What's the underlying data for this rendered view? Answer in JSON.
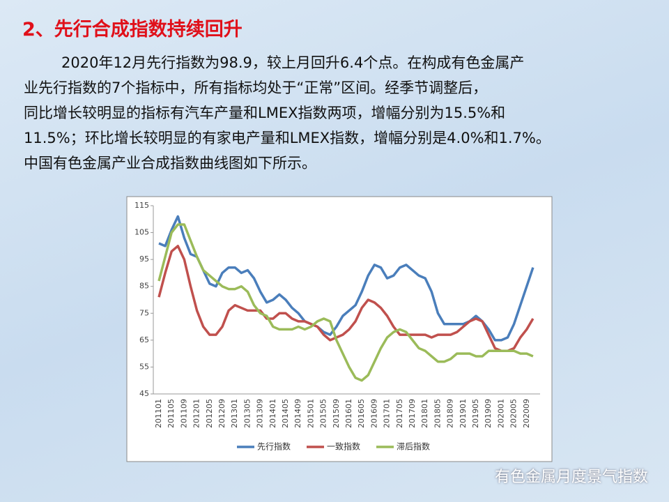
{
  "heading": "2、先行合成指数持续回升",
  "paragraph": [
    "2020年12月先行指数为98.9，较上月回升6.4个点。在构成有色金属产",
    "业先行指数的7个指标中，所有指标均处于“正常”区间。经季节调整后，",
    "同比增长较明显的指标有汽车产量和LMEX指数两项，增幅分别为15.5%和",
    "11.5%；环比增长较明显的有家电产量和LMEX指数，增幅分别是4.0%和1.7%。",
    "中国有色金属产业合成指数曲线图如下所示。"
  ],
  "footer": "有色金属月度景气指数",
  "chart_data": {
    "type": "line",
    "categories": [
      "201101",
      null,
      "201105",
      null,
      "201109",
      null,
      "201201",
      null,
      "201205",
      null,
      "201209",
      null,
      "201301",
      null,
      "201305",
      null,
      "201309",
      null,
      "201401",
      null,
      "201405",
      null,
      "201409",
      null,
      "201501",
      null,
      "201505",
      null,
      "201509",
      null,
      "201601",
      null,
      "201605",
      null,
      "201609",
      null,
      "201701",
      null,
      "201705",
      null,
      "201709",
      null,
      "201801",
      null,
      "201805",
      null,
      "201809",
      null,
      "201901",
      null,
      "201905",
      null,
      "201909",
      null,
      "202001",
      null,
      "202005",
      null,
      "202009",
      null
    ],
    "series": [
      {
        "name": "先行指数",
        "color": "#4a7ebb",
        "values": [
          101,
          100,
          106,
          111,
          103,
          97,
          96,
          91,
          86,
          85,
          90,
          92,
          92,
          90,
          91,
          88,
          83,
          79,
          80,
          82,
          80,
          77,
          75,
          72,
          71,
          70,
          68,
          67,
          70,
          74,
          76,
          78,
          83,
          89,
          93,
          92,
          88,
          89,
          92,
          93,
          91,
          89,
          88,
          83,
          75,
          71,
          71,
          71,
          71,
          72,
          74,
          72,
          69,
          65,
          65,
          66,
          71,
          78,
          85,
          92
        ]
      },
      {
        "name": "一致指数",
        "color": "#c0504d",
        "values": [
          81,
          90,
          98,
          100,
          95,
          85,
          76,
          70,
          67,
          67,
          70,
          76,
          78,
          77,
          76,
          76,
          76,
          73,
          73,
          75,
          75,
          73,
          72,
          72,
          71,
          70,
          67,
          65,
          66,
          67,
          69,
          72,
          77,
          80,
          79,
          77,
          74,
          70,
          67,
          67,
          67,
          67,
          67,
          66,
          67,
          67,
          67,
          68,
          70,
          72,
          73,
          72,
          67,
          62,
          61,
          61,
          62,
          66,
          69,
          73
        ]
      },
      {
        "name": "滞后指数",
        "color": "#9bbb59",
        "values": [
          87,
          96,
          105,
          108,
          108,
          102,
          96,
          91,
          89,
          87,
          85,
          84,
          84,
          85,
          83,
          78,
          75,
          74,
          70,
          69,
          69,
          69,
          70,
          69,
          70,
          72,
          73,
          72,
          65,
          60,
          55,
          51,
          50,
          52,
          57,
          62,
          66,
          68,
          69,
          68,
          65,
          62,
          61,
          59,
          57,
          57,
          58,
          60,
          60,
          60,
          59,
          59,
          61,
          61,
          61,
          61,
          61,
          60,
          60,
          59
        ]
      }
    ],
    "ylim": [
      45,
      115
    ],
    "yticks": [
      45,
      55,
      65,
      75,
      85,
      95,
      105,
      115
    ],
    "grid": false,
    "legend": "bottom"
  }
}
